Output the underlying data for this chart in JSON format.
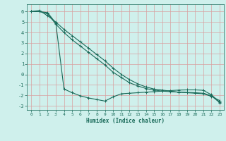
{
  "xlabel": "Humidex (Indice chaleur)",
  "background_color": "#cff0ec",
  "grid_color": "#d9a0a0",
  "line_color": "#1a6b5a",
  "xlim": [
    -0.5,
    23.5
  ],
  "ylim": [
    -3.4,
    6.7
  ],
  "xticks": [
    0,
    1,
    2,
    3,
    4,
    5,
    6,
    7,
    8,
    9,
    10,
    11,
    12,
    13,
    14,
    15,
    16,
    17,
    18,
    19,
    20,
    21,
    22,
    23
  ],
  "yticks": [
    -3,
    -2,
    -1,
    0,
    1,
    2,
    3,
    4,
    5,
    6
  ],
  "series": [
    {
      "x": [
        0,
        1,
        2,
        3,
        4,
        5,
        6,
        7,
        8,
        9,
        10,
        11,
        12,
        13,
        14,
        15,
        16,
        17,
        18,
        19,
        20,
        21,
        22,
        23
      ],
      "y": [
        6.0,
        6.1,
        5.6,
        5.0,
        4.3,
        3.7,
        3.1,
        2.5,
        1.9,
        1.3,
        0.6,
        0.0,
        -0.5,
        -0.9,
        -1.2,
        -1.4,
        -1.5,
        -1.6,
        -1.7,
        -1.75,
        -1.8,
        -1.85,
        -2.1,
        -2.5
      ]
    },
    {
      "x": [
        0,
        1,
        2,
        3,
        4,
        5,
        6,
        7,
        8,
        9,
        10,
        11,
        12,
        13,
        14,
        15,
        16,
        17,
        18,
        19,
        20,
        21,
        22,
        23
      ],
      "y": [
        6.0,
        6.0,
        5.9,
        4.9,
        -1.4,
        -1.75,
        -2.05,
        -2.25,
        -2.4,
        -2.55,
        -2.15,
        -1.85,
        -1.8,
        -1.75,
        -1.7,
        -1.65,
        -1.6,
        -1.55,
        -1.5,
        -1.48,
        -1.48,
        -1.52,
        -1.95,
        -2.65
      ]
    },
    {
      "x": [
        0,
        1,
        2,
        3,
        4,
        5,
        6,
        7,
        8,
        9,
        10,
        11,
        12,
        13,
        14,
        15,
        16,
        17,
        18,
        19,
        20,
        21,
        22,
        23
      ],
      "y": [
        6.0,
        6.0,
        5.8,
        4.8,
        4.0,
        3.3,
        2.7,
        2.1,
        1.5,
        0.9,
        0.2,
        -0.3,
        -0.8,
        -1.1,
        -1.35,
        -1.5,
        -1.6,
        -1.65,
        -1.7,
        -1.72,
        -1.75,
        -1.8,
        -2.05,
        -2.7
      ]
    }
  ]
}
